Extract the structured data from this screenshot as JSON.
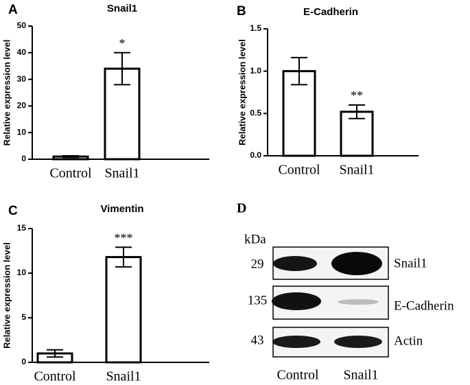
{
  "chart_data": [
    {
      "type": "bar",
      "panel": "A",
      "title": "Snail1",
      "y_label": "Relative expression level",
      "categories": [
        "Control",
        "Snail1"
      ],
      "values": [
        1,
        34
      ],
      "errors": [
        0.3,
        6
      ],
      "significance": [
        null,
        "*"
      ],
      "color": "#ffffff",
      "ylim": [
        0,
        50
      ],
      "yticks": [
        0,
        10,
        20,
        30,
        40,
        50
      ]
    },
    {
      "type": "bar",
      "panel": "B",
      "title": "E-Cadherin",
      "y_label": "Relative expression level",
      "categories": [
        "Control",
        "Snail1"
      ],
      "values": [
        1.0,
        0.52
      ],
      "errors": [
        0.16,
        0.08
      ],
      "significance": [
        null,
        "**"
      ],
      "color": "#ffffff",
      "ylim": [
        0,
        1.5
      ],
      "yticks": [
        {
          "value": 0,
          "label": "0.0"
        },
        {
          "value": 0.5,
          "label": "0.5"
        },
        {
          "value": 1,
          "label": "1.0"
        },
        {
          "value": 1.5,
          "label": "1.5"
        }
      ]
    },
    {
      "type": "bar",
      "panel": "C",
      "title": "Vimentin",
      "y_label": "Relative expression level",
      "categories": [
        "Control",
        "Snail1"
      ],
      "values": [
        1,
        11.8
      ],
      "errors": [
        0.4,
        1.1
      ],
      "significance": [
        null,
        "***"
      ],
      "color": "#ffffff",
      "ylim": [
        0,
        15
      ],
      "yticks": [
        0,
        5,
        10,
        15
      ]
    }
  ],
  "blot": {
    "panel": "D",
    "unit": "kDa",
    "rows": [
      {
        "weight": 29,
        "name": "Snail1"
      },
      {
        "weight": 135,
        "name": "E-Cadherin"
      },
      {
        "weight": 43,
        "name": "Actin"
      }
    ],
    "lanes": [
      "Control",
      "Snail1"
    ]
  }
}
